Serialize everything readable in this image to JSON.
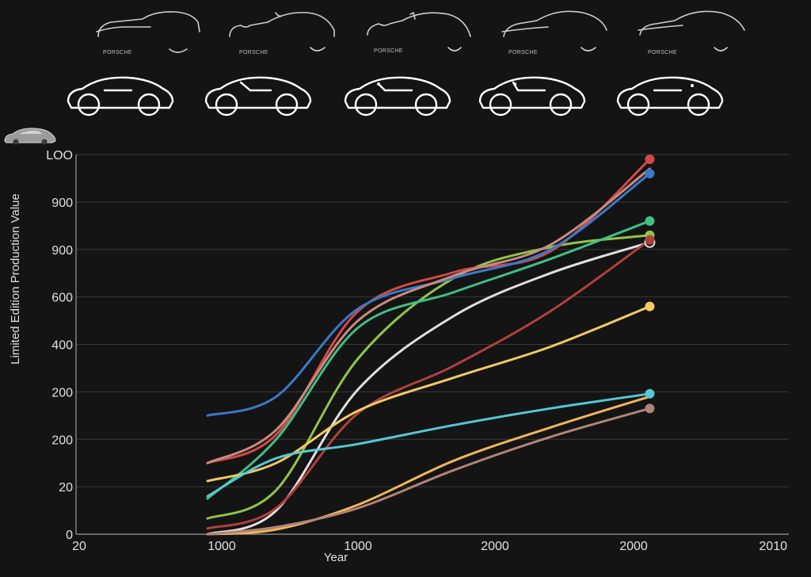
{
  "sketch_captions": [
    "PORSCHE",
    "PORSCHE",
    "PORSCHE",
    "PORSCHE",
    "PORSCHE"
  ],
  "chart_data": {
    "type": "line",
    "title": "",
    "xlabel": "Year",
    "ylabel": "Limited Edition Production Value",
    "x_tick_labels": [
      "20",
      "1000",
      "1000",
      "2000",
      "2000",
      "2010"
    ],
    "y_tick_labels": [
      "0",
      "20",
      "200",
      "200",
      "400",
      "600",
      "900",
      "900",
      "LOO"
    ],
    "y_range": [
      0,
      8
    ],
    "x_range": [
      0,
      5
    ],
    "grid": true,
    "legend": "none",
    "series": [
      {
        "color": "#8fc44a",
        "points": [
          [
            0.9,
            0.33
          ],
          [
            1.4,
            0.93
          ],
          [
            2.0,
            3.7
          ],
          [
            2.7,
            5.4
          ],
          [
            3.4,
            6.05
          ],
          [
            4.12,
            6.3
          ]
        ],
        "end_marker": "filled"
      },
      {
        "color": "#d24a47",
        "points": [
          [
            0.9,
            1.5
          ],
          [
            1.4,
            2.1
          ],
          [
            2.0,
            4.7
          ],
          [
            2.7,
            5.52
          ],
          [
            3.4,
            5.96
          ],
          [
            4.12,
            7.9
          ]
        ],
        "end_marker": "filled"
      },
      {
        "color": "#3b78c8",
        "points": [
          [
            0.9,
            2.5
          ],
          [
            1.4,
            2.9
          ],
          [
            2.0,
            4.75
          ],
          [
            2.7,
            5.4
          ],
          [
            3.4,
            6.0
          ],
          [
            4.12,
            7.6
          ]
        ],
        "end_marker": "filled"
      },
      {
        "color": "#c98a7e",
        "points": [
          [
            0.9,
            1.5
          ],
          [
            1.4,
            2.2
          ],
          [
            2.0,
            4.5
          ],
          [
            2.7,
            5.45
          ],
          [
            3.4,
            6.1
          ],
          [
            4.12,
            7.7
          ]
        ],
        "end_marker": "none"
      },
      {
        "color": "#3fbf85",
        "points": [
          [
            0.9,
            0.75
          ],
          [
            1.4,
            2.0
          ],
          [
            2.0,
            4.35
          ],
          [
            2.7,
            5.1
          ],
          [
            3.4,
            5.8
          ],
          [
            4.12,
            6.6
          ]
        ],
        "end_marker": "filled"
      },
      {
        "color": "#e2dede",
        "points": [
          [
            0.9,
            0.0
          ],
          [
            1.4,
            0.5
          ],
          [
            2.0,
            3.05
          ],
          [
            2.7,
            4.6
          ],
          [
            3.4,
            5.5
          ],
          [
            4.12,
            6.15
          ]
        ],
        "end_marker": "ring"
      },
      {
        "color": "#b0403c",
        "points": [
          [
            0.9,
            0.12
          ],
          [
            1.4,
            0.55
          ],
          [
            2.0,
            2.55
          ],
          [
            2.7,
            3.55
          ],
          [
            3.4,
            4.7
          ],
          [
            4.12,
            6.2
          ]
        ],
        "end_marker": "filled"
      },
      {
        "color": "#f3c963",
        "points": [
          [
            0.9,
            1.12
          ],
          [
            1.4,
            1.5
          ],
          [
            2.0,
            2.6
          ],
          [
            2.7,
            3.3
          ],
          [
            3.4,
            3.95
          ],
          [
            4.12,
            4.8
          ]
        ],
        "end_marker": "filled"
      },
      {
        "color": "#56c8d2",
        "points": [
          [
            0.9,
            0.8
          ],
          [
            1.4,
            1.6
          ],
          [
            2.0,
            1.9
          ],
          [
            2.7,
            2.3
          ],
          [
            3.4,
            2.65
          ],
          [
            4.12,
            2.96
          ]
        ],
        "end_marker": "filled"
      },
      {
        "color": "#f0b55a",
        "points": [
          [
            0.9,
            0.0
          ],
          [
            1.4,
            0.1
          ],
          [
            2.0,
            0.62
          ],
          [
            2.7,
            1.55
          ],
          [
            3.4,
            2.25
          ],
          [
            4.12,
            2.9
          ]
        ],
        "end_marker": "none"
      },
      {
        "color": "#b08378",
        "points": [
          [
            0.9,
            0.0
          ],
          [
            1.4,
            0.15
          ],
          [
            2.0,
            0.55
          ],
          [
            2.7,
            1.35
          ],
          [
            3.4,
            2.05
          ],
          [
            4.12,
            2.65
          ]
        ],
        "end_marker": "filled"
      }
    ]
  }
}
